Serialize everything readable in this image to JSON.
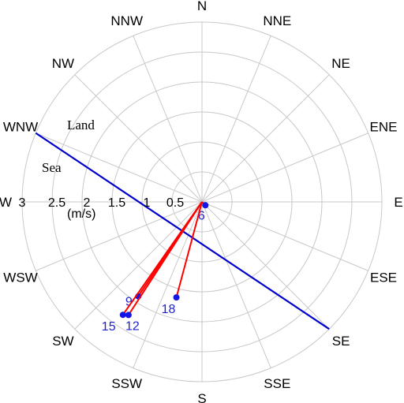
{
  "chart_data": {
    "type": "polar-vector",
    "directions": [
      "N",
      "NNE",
      "NE",
      "ENE",
      "E",
      "ESE",
      "SE",
      "SSE",
      "S",
      "SSW",
      "SW",
      "WSW",
      "W",
      "WNW",
      "NW",
      "NNW"
    ],
    "radial_ticks": [
      "3",
      "2.5",
      "2",
      "1.5",
      "1",
      "0.5"
    ],
    "radial_unit": "(m/s)",
    "rmax": 3,
    "regions": [
      "Land",
      "Sea"
    ],
    "coastline": {
      "from": "WNW",
      "to": "SE"
    },
    "vectors": [
      {
        "label": "6",
        "speed": 0.08,
        "direction_deg": 135
      },
      {
        "label": "9",
        "speed": 1.9,
        "direction_deg": 214
      },
      {
        "label": "12",
        "speed": 2.25,
        "direction_deg": 213
      },
      {
        "label": "15",
        "speed": 2.3,
        "direction_deg": 215
      },
      {
        "label": "18",
        "speed": 1.65,
        "direction_deg": 195
      }
    ],
    "colors": {
      "grid": "#c8c8c8",
      "vector": "#ff0000",
      "point": "#1414e6",
      "coastline": "#0000cc",
      "label": "#2222cc"
    }
  }
}
